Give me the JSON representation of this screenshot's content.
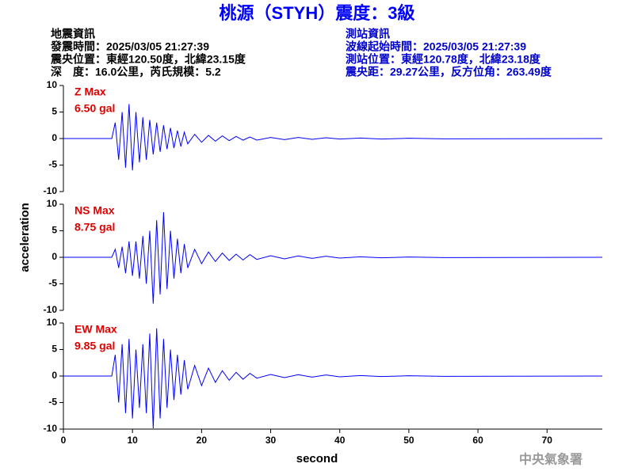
{
  "header": {
    "title": "桃源（STYH）震度：3級",
    "left": [
      "地震資訊",
      "發震時間：2025/03/05 21:27:39",
      "震央位置：東經120.50度，北緯23.15度",
      "深　度：16.0公里，芮氏規模：5.2"
    ],
    "right": [
      "測站資訊",
      "波線起始時間：2025/03/05 21:27:39",
      "測站位置：東經120.78度，北緯23.18度",
      "震央距：29.27公里，反方位角：263.49度"
    ]
  },
  "footer": "中央氣象署",
  "chart_data": [
    {
      "type": "line",
      "label": "Z Max",
      "max_label": "6.50 gal",
      "color": "#0000ff",
      "x": [
        0,
        7,
        7.5,
        8,
        8.5,
        9,
        9.5,
        10,
        10.5,
        11,
        11.5,
        12,
        12.5,
        13,
        13.5,
        14,
        14.5,
        15,
        15.5,
        16,
        16.5,
        17,
        17.5,
        18,
        19,
        20,
        21,
        22,
        23,
        24,
        25,
        26,
        27,
        28,
        30,
        32,
        34,
        36,
        38,
        40,
        43,
        46,
        50,
        55,
        78
      ],
      "values": [
        0,
        0,
        3,
        -4,
        5,
        -5.5,
        6.5,
        -6,
        5,
        -4.5,
        4,
        -4,
        3.5,
        -3,
        3,
        -2.5,
        2.5,
        -2,
        2,
        -1.8,
        1.5,
        -1.5,
        1.2,
        -1,
        0.8,
        -0.7,
        0.6,
        -0.5,
        0.5,
        -0.4,
        0.4,
        -0.3,
        0.3,
        -0.3,
        0.2,
        -0.2,
        0.2,
        -0.15,
        0.15,
        -0.1,
        0.1,
        -0.1,
        0.05,
        -0.05,
        0
      ],
      "xlim": [
        0,
        78
      ],
      "ylim": [
        -10,
        10
      ],
      "yticks": [
        -10,
        -5,
        0,
        5,
        10
      ]
    },
    {
      "type": "line",
      "label": "NS Max",
      "max_label": "8.75 gal",
      "color": "#0000ff",
      "ylabel": "acceleration",
      "x": [
        0,
        7,
        7.5,
        8,
        8.5,
        9,
        9.5,
        10,
        10.5,
        11,
        11.5,
        12,
        12.5,
        13,
        13.5,
        14,
        14.5,
        15,
        15.5,
        16,
        16.5,
        17,
        17.5,
        18,
        19,
        20,
        21,
        22,
        23,
        24,
        25,
        26,
        27,
        28,
        30,
        32,
        34,
        36,
        38,
        40,
        43,
        46,
        50,
        55,
        78
      ],
      "values": [
        0,
        0,
        1.5,
        -2,
        2,
        -3,
        3,
        -3.5,
        3,
        -4,
        4,
        -5,
        5,
        -8.75,
        7,
        -7,
        8.5,
        -6,
        5,
        -4,
        3.5,
        -3,
        2.5,
        -2,
        1.5,
        -1.2,
        1,
        -0.8,
        0.8,
        -0.6,
        0.6,
        -0.5,
        0.5,
        -0.4,
        0.3,
        -0.3,
        0.25,
        -0.2,
        0.2,
        -0.15,
        0.1,
        -0.1,
        0.05,
        -0.05,
        0
      ],
      "xlim": [
        0,
        78
      ],
      "ylim": [
        -10,
        10
      ],
      "yticks": [
        -10,
        -5,
        0,
        5,
        10
      ]
    },
    {
      "type": "line",
      "label": "EW Max",
      "max_label": "9.85 gal",
      "color": "#0000ff",
      "xlabel": "second",
      "x": [
        0,
        7,
        7.5,
        8,
        8.5,
        9,
        9.5,
        10,
        10.5,
        11,
        11.5,
        12,
        12.5,
        13,
        13.5,
        14,
        14.5,
        15,
        15.5,
        16,
        16.5,
        17,
        17.5,
        18,
        19,
        20,
        21,
        22,
        23,
        24,
        25,
        26,
        27,
        28,
        30,
        32,
        34,
        36,
        38,
        40,
        43,
        46,
        50,
        55,
        78
      ],
      "values": [
        0,
        0,
        4,
        -5,
        6,
        -7,
        7,
        -8,
        5,
        -6,
        6,
        -7,
        8,
        -9.85,
        9,
        -8,
        7,
        -6,
        5,
        -4.5,
        4,
        -3.5,
        3,
        -2.5,
        2,
        -1.8,
        1.5,
        -1.2,
        1,
        -0.8,
        0.7,
        -0.6,
        0.5,
        -0.4,
        0.3,
        -0.3,
        0.25,
        -0.2,
        0.2,
        -0.15,
        0.1,
        -0.1,
        0.05,
        -0.05,
        0
      ],
      "xlim": [
        0,
        78
      ],
      "ylim": [
        -10,
        10
      ],
      "yticks": [
        -10,
        -5,
        0,
        5,
        10
      ],
      "xticks": [
        0,
        10,
        20,
        30,
        40,
        50,
        60,
        70
      ]
    }
  ]
}
